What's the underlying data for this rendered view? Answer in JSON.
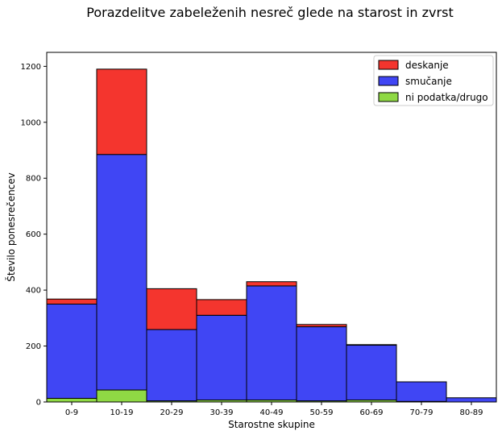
{
  "chart_data": {
    "type": "bar",
    "stacked": true,
    "title": "Porazdelitve zabeleženih nesreč glede na starost in zvrst",
    "xlabel": "Starostne skupine",
    "ylabel": "Število ponesrečencev",
    "categories": [
      "0-9",
      "10-19",
      "20-29",
      "30-39",
      "40-49",
      "50-59",
      "60-69",
      "70-79",
      "80-89"
    ],
    "series": [
      {
        "name": "ni podatka/drugo",
        "color": "#8fd944",
        "values": [
          13,
          43,
          4,
          7,
          7,
          4,
          7,
          2,
          0
        ]
      },
      {
        "name": "smučanje",
        "color": "#4046f4",
        "values": [
          337,
          842,
          255,
          303,
          408,
          265,
          196,
          70,
          15
        ]
      },
      {
        "name": "deskanje",
        "color": "#f4352e",
        "values": [
          18,
          305,
          146,
          56,
          15,
          8,
          2,
          0,
          0
        ]
      }
    ],
    "legend_order": [
      "deskanje",
      "smučanje",
      "ni podatka/drugo"
    ],
    "ylim": [
      0,
      1250
    ],
    "yticks": [
      0,
      200,
      400,
      600,
      800,
      1000,
      1200
    ],
    "grid": false,
    "legend_position": "top-right"
  }
}
